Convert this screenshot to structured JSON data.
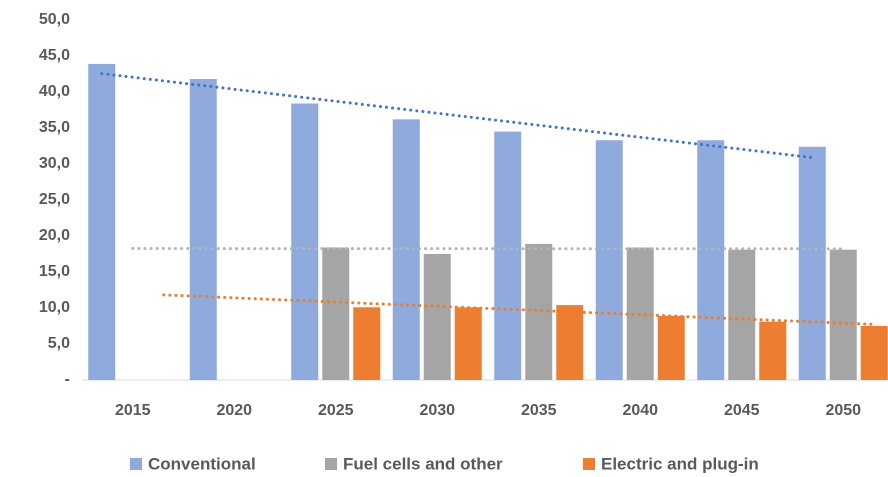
{
  "chart_data": {
    "type": "bar",
    "categories": [
      "2015",
      "2020",
      "2025",
      "2030",
      "2035",
      "2040",
      "2045",
      "2050"
    ],
    "series": [
      {
        "name": "Conventional",
        "color": "#8faadc",
        "trend_color": "#4472c4",
        "values": [
          43.9,
          41.8,
          38.4,
          36.2,
          34.5,
          33.3,
          33.3,
          32.4
        ]
      },
      {
        "name": "Fuel cells and other",
        "color": "#a5a5a5",
        "trend_color": "#b4b4b4",
        "values": [
          null,
          null,
          18.4,
          17.5,
          18.9,
          18.4,
          18.1,
          18.1
        ]
      },
      {
        "name": "Electric and plug-in",
        "color": "#ed7d31",
        "trend_color": "#ed7d31",
        "values": [
          null,
          null,
          10.1,
          10.1,
          10.4,
          8.9,
          8.1,
          7.5
        ]
      }
    ],
    "ylim": [
      0,
      50
    ],
    "yticks": [
      {
        "value": 0,
        "label": "-"
      },
      {
        "value": 5,
        "label": "5,0"
      },
      {
        "value": 10,
        "label": "10,0"
      },
      {
        "value": 15,
        "label": "15,0"
      },
      {
        "value": 20,
        "label": "20,0"
      },
      {
        "value": 25,
        "label": "25,0"
      },
      {
        "value": 30,
        "label": "30,0"
      },
      {
        "value": 35,
        "label": "35,0"
      },
      {
        "value": 40,
        "label": "40,0"
      },
      {
        "value": 45,
        "label": "45,0"
      },
      {
        "value": 50,
        "label": "50,0"
      }
    ],
    "grid": false,
    "trendline": true,
    "legend": "bottom"
  }
}
